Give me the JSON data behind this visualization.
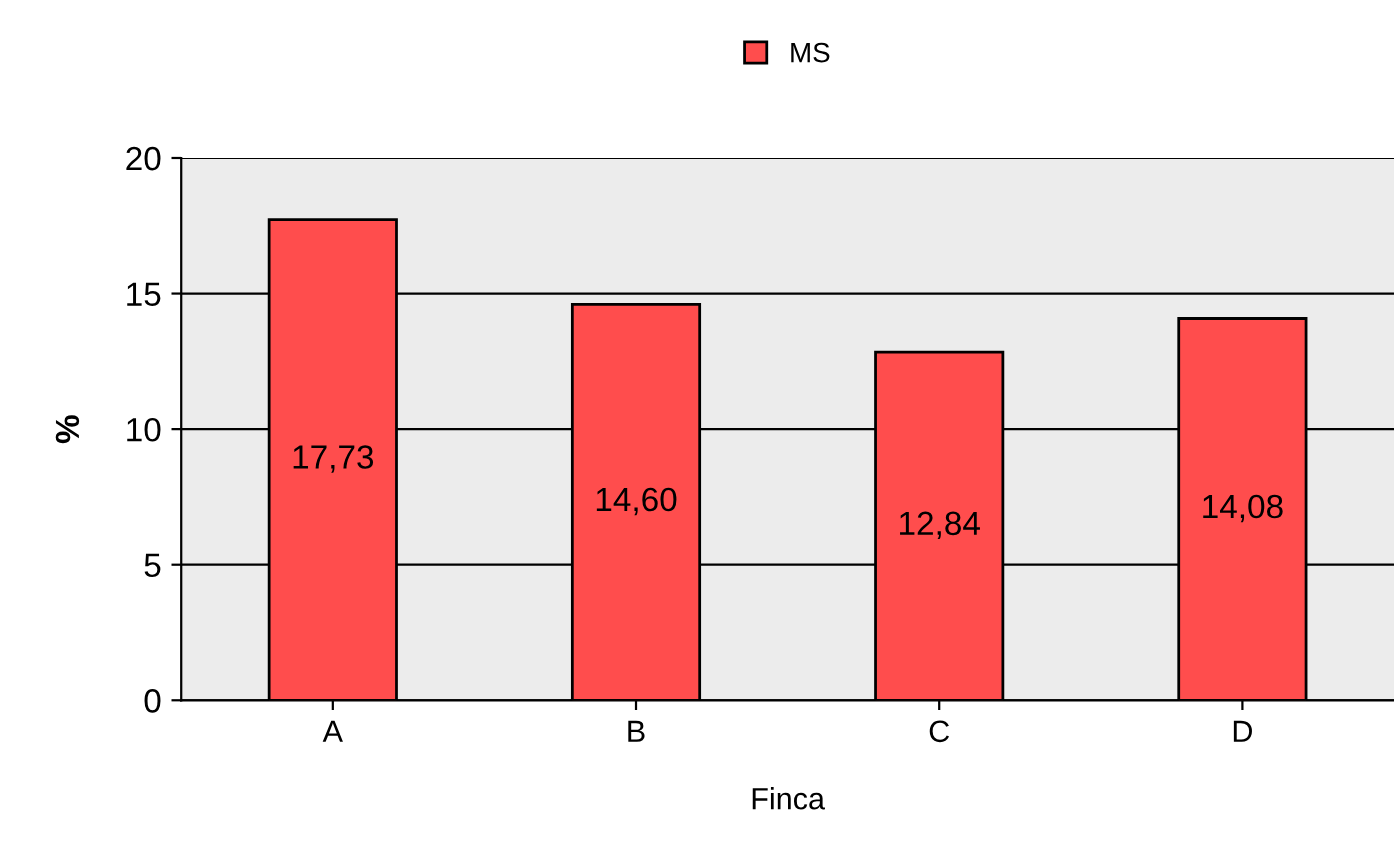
{
  "chart_data": {
    "type": "bar",
    "xlabel": "Finca",
    "ylabel": "%",
    "categories": [
      "A",
      "B",
      "C",
      "D"
    ],
    "series": [
      {
        "name": "MS",
        "color": "#ff4d4d",
        "values": [
          17.73,
          14.6,
          12.84,
          14.08
        ],
        "value_labels": [
          "17,73",
          "14,60",
          "12,84",
          "14,08"
        ]
      }
    ],
    "ylim": [
      0,
      20
    ],
    "yticks": [
      0,
      5,
      10,
      15,
      20
    ],
    "grid": "y",
    "legend": "top"
  }
}
